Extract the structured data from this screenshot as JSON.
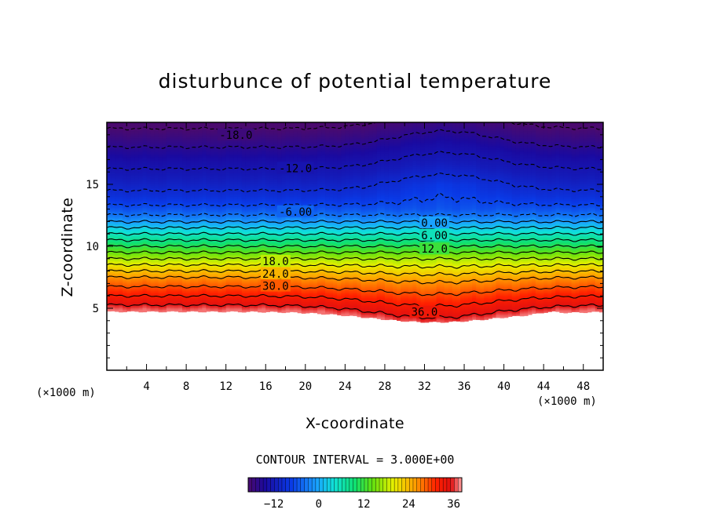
{
  "chart_data": {
    "type": "heatmap",
    "title": "disturbunce of potential temperature",
    "xlabel": "X-coordinate",
    "ylabel": "Z-coordinate",
    "x_unit": "(×1000 m)",
    "z_unit": "(×1000 m)",
    "xlim": [
      0,
      50
    ],
    "ylim": [
      0,
      20
    ],
    "x_ticks": [
      "4",
      "8",
      "12",
      "16",
      "20",
      "24",
      "28",
      "32",
      "36",
      "40",
      "44",
      "48"
    ],
    "y_ticks": [
      "5",
      "10",
      "15"
    ],
    "contour_interval_text": "CONTOUR INTERVAL = 3.000E+00",
    "colorbar_range": [
      -18,
      39
    ],
    "colorbar_ticks": [
      "−12",
      "0",
      "12",
      "24",
      "36"
    ],
    "contour_labels": [
      {
        "text": "-18.0",
        "x": 13,
        "z": 19.0
      },
      {
        "text": "-12.0",
        "x": 19,
        "z": 16.3
      },
      {
        "text": "-6.00",
        "x": 19,
        "z": 12.8
      },
      {
        "text": "0.00",
        "x": 33,
        "z": 11.9
      },
      {
        "text": "6.00",
        "x": 33,
        "z": 10.9
      },
      {
        "text": "12.0",
        "x": 33,
        "z": 9.8
      },
      {
        "text": "18.0",
        "x": 17,
        "z": 8.8
      },
      {
        "text": "24.0",
        "x": 17,
        "z": 7.8
      },
      {
        "text": "30.0",
        "x": 17,
        "z": 6.8
      },
      {
        "text": "36.0",
        "x": 32,
        "z": 4.7
      }
    ],
    "field_profile": {
      "z": [
        4.8,
        5.5,
        6.5,
        7.5,
        8.5,
        9.5,
        10.5,
        11.5,
        12.3,
        13.0,
        14.0,
        15.5,
        17.0,
        18.5,
        20.0
      ],
      "theta": [
        38,
        35,
        31,
        27,
        21,
        15,
        9,
        3,
        -2,
        -5,
        -8,
        -11,
        -13,
        -16,
        -19
      ]
    }
  }
}
